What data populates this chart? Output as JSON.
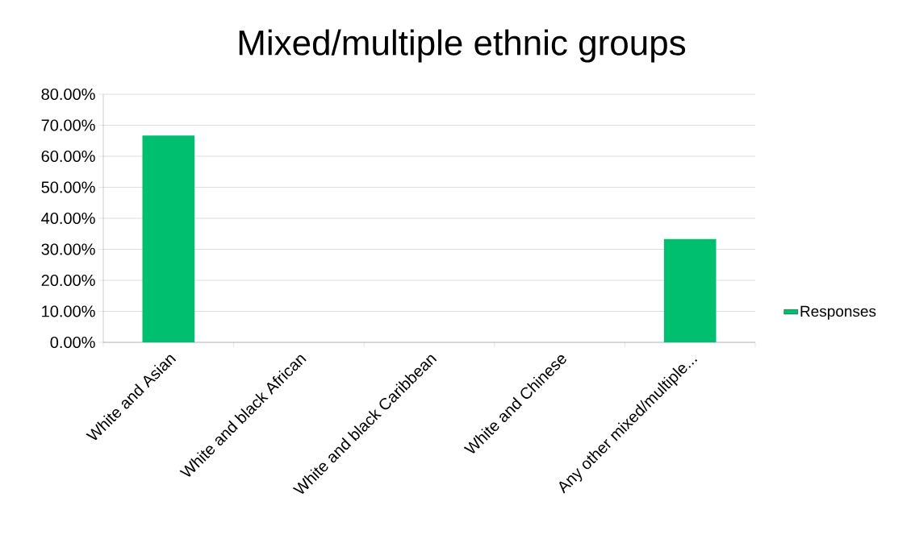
{
  "chart_data": {
    "type": "bar",
    "title": "Mixed/multiple ethnic groups",
    "categories": [
      "White and Asian",
      "White and black African",
      "White and black Caribbean",
      "White and Chinese",
      "Any other mixed/multiple..."
    ],
    "series": [
      {
        "name": "Responses",
        "color": "#00bf6f",
        "values": [
          66.7,
          0,
          0,
          0,
          33.3
        ]
      }
    ],
    "ylim": [
      0,
      80
    ],
    "yticks": [
      {
        "value": 0,
        "label": "0.00%"
      },
      {
        "value": 10,
        "label": "10.00%"
      },
      {
        "value": 20,
        "label": "20.00%"
      },
      {
        "value": 30,
        "label": "30.00%"
      },
      {
        "value": 40,
        "label": "40.00%"
      },
      {
        "value": 50,
        "label": "50.00%"
      },
      {
        "value": 60,
        "label": "60.00%"
      },
      {
        "value": 70,
        "label": "70.00%"
      },
      {
        "value": 80,
        "label": "80.00%"
      }
    ],
    "grid": "y",
    "legend": "right"
  }
}
